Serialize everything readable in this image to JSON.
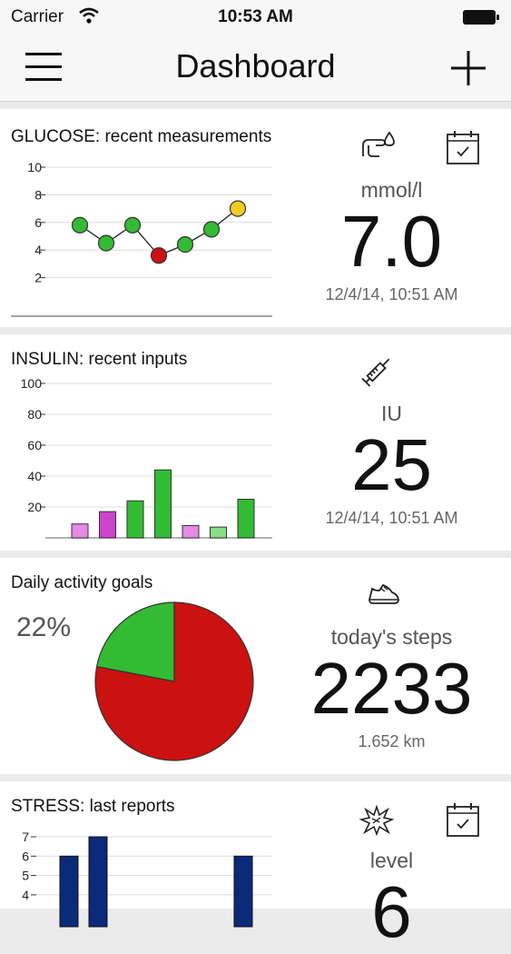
{
  "status_bar": {
    "carrier": "Carrier",
    "time": "10:53 AM"
  },
  "nav": {
    "title": "Dashboard"
  },
  "glucose": {
    "title": "GLUCOSE: recent measurements",
    "unit": "mmol/l",
    "value": "7.0",
    "timestamp": "12/4/14, 10:51 AM",
    "icons": [
      "finger-drop-icon",
      "calendar-icon"
    ],
    "chart_data": {
      "type": "line",
      "title": "GLUCOSE: recent measurements",
      "yticks": [
        2,
        4,
        6,
        8,
        10
      ],
      "ylim": [
        0,
        10
      ],
      "values": [
        5.8,
        4.5,
        5.8,
        3.6,
        4.4,
        5.5,
        7.0
      ],
      "point_colors": [
        "#33bb33",
        "#33bb33",
        "#33bb33",
        "#cc1111",
        "#33bb33",
        "#33bb33",
        "#f2cc22"
      ],
      "grid": true
    }
  },
  "insulin": {
    "title": "INSULIN: recent inputs",
    "unit": "IU",
    "value": "25",
    "timestamp": "12/4/14, 10:51 AM",
    "icons": [
      "syringe-icon"
    ],
    "chart_data": {
      "type": "bar",
      "title": "INSULIN: recent inputs",
      "yticks": [
        20,
        40,
        60,
        80,
        100
      ],
      "ylim": [
        0,
        100
      ],
      "values": [
        9,
        17,
        24,
        44,
        8,
        7,
        25
      ],
      "bar_colors": [
        "#e58ae5",
        "#cc44cc",
        "#33bb33",
        "#33bb33",
        "#e58ae5",
        "#88dd88",
        "#33bb33"
      ],
      "grid": true
    }
  },
  "activity": {
    "title": "Daily activity goals",
    "percent_label": "22%",
    "unit": "today's steps",
    "value": "2233",
    "distance": "1.652 km",
    "icons": [
      "sneaker-icon"
    ],
    "chart_data": {
      "type": "pie",
      "title": "Daily activity goals",
      "slices": [
        {
          "value": 22,
          "color": "#33bb33"
        },
        {
          "value": 78,
          "color": "#cc1111"
        }
      ]
    }
  },
  "stress": {
    "title": "STRESS: last reports",
    "unit": "level",
    "value": "6",
    "icons": [
      "burst-icon",
      "calendar-icon"
    ],
    "chart_data": {
      "type": "bar",
      "title": "STRESS: last reports",
      "yticks": [
        4,
        5,
        6,
        7
      ],
      "ylim": [
        0,
        7
      ],
      "values": [
        6,
        7,
        6
      ],
      "bar_color": "#0b2a7a",
      "grid": true
    }
  }
}
